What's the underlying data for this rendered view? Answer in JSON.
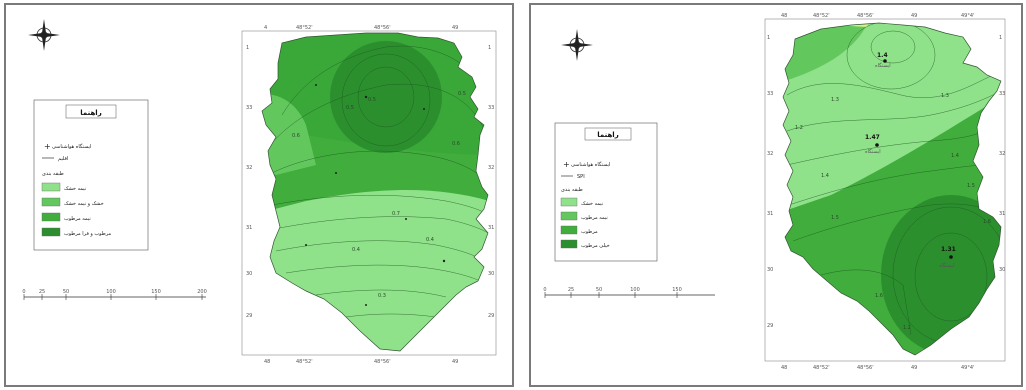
{
  "maps": [
    {
      "legend": {
        "title": "راهنما",
        "items": [
          {
            "label": "ایستگاه هواشناسی",
            "symbol": "station"
          },
          {
            "label": "اقلیم",
            "symbol": "line"
          }
        ],
        "class_heading": "طبقه بندی",
        "classes": [
          {
            "label": "نیمه خشک",
            "color": "#8fe18a"
          },
          {
            "label": "خشک و نیمه خشک",
            "color": "#62c85e"
          },
          {
            "label": "نیمه مرطوب",
            "color": "#40ad3c"
          },
          {
            "label": "مرطوب و فرا مرطوب",
            "color": "#2b8f2e"
          }
        ]
      },
      "scale_labels": [
        "0",
        "25",
        "50",
        "100",
        "150",
        "200"
      ],
      "top_ticks": [
        "4",
        "48°52'",
        "48°56'",
        "49"
      ],
      "bottom_ticks": [
        "48",
        "48°52'",
        "48°56'",
        "49"
      ],
      "left_ticks": [
        "1",
        "33",
        "32",
        "31",
        "30",
        "29"
      ],
      "right_ticks": [
        "1",
        "33",
        "32",
        "31",
        "30",
        "29"
      ],
      "contour_labels": [
        "0.5",
        "0.5",
        "0.5",
        "0.6",
        "0.6",
        "0.7",
        "0.4",
        "0.4",
        "0.3"
      ]
    },
    {
      "legend": {
        "title": "راهنما",
        "items": [
          {
            "label": "ایستگاه هواشناسی",
            "symbol": "station"
          },
          {
            "label": "SPI",
            "symbol": "line"
          }
        ],
        "class_heading": "طبقه بندی",
        "classes": [
          {
            "label": "نیمه خشک",
            "color": "#8fe18a"
          },
          {
            "label": "نیمه مرطوب",
            "color": "#62c85e"
          },
          {
            "label": "مرطوب",
            "color": "#40ad3c"
          },
          {
            "label": "خیلی مرطوب",
            "color": "#2b8f2e"
          }
        ]
      },
      "scale_labels": [
        "0",
        "25",
        "50",
        "100",
        "150"
      ],
      "stations": [
        {
          "value": "1.4",
          "name": "ایستگاه"
        },
        {
          "value": "1.47",
          "name": "ایستگاه"
        },
        {
          "value": "1.31",
          "name": "ایستگاه"
        }
      ],
      "top_ticks": [
        "48",
        "48°52'",
        "48°56'",
        "49",
        "49°4'"
      ],
      "bottom_ticks": [
        "48",
        "48°52'",
        "48°56'",
        "49",
        "49°4'"
      ],
      "left_ticks": [
        "1",
        "33",
        "32",
        "31",
        "30",
        "29"
      ],
      "right_ticks": [
        "1",
        "33",
        "32",
        "31",
        "30"
      ],
      "contour_labels": [
        "1.2",
        "1.3",
        "1.3",
        "1.4",
        "1.4",
        "1.5",
        "1.5",
        "1.6",
        "1.6",
        "1.2"
      ]
    }
  ]
}
